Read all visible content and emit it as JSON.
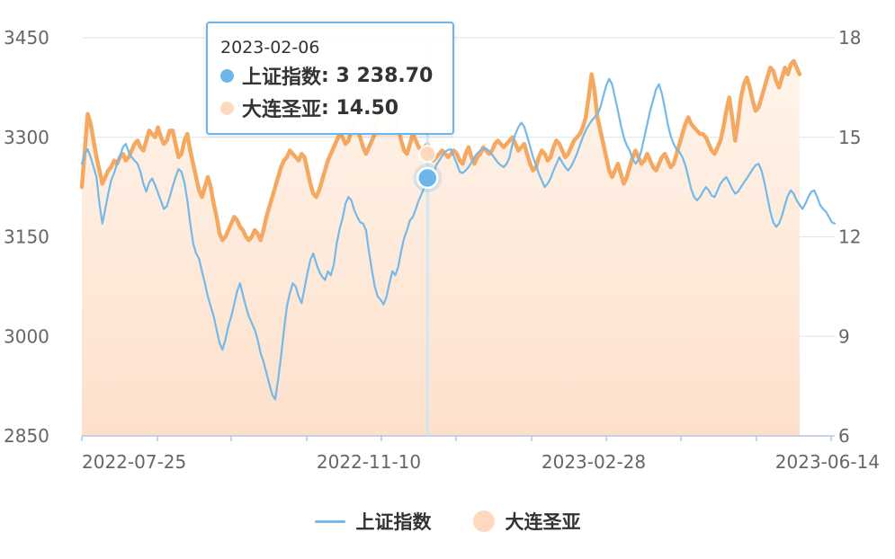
{
  "chart_data": {
    "type": "line",
    "x_ticks": [
      "2022-07-25",
      "2022-11-10",
      "2023-02-28",
      "2023-06-14"
    ],
    "y_left": {
      "ticks": [
        "2850",
        "3000",
        "3150",
        "3300",
        "3450"
      ],
      "min": 2850,
      "max": 3450
    },
    "y_right": {
      "ticks": [
        "6",
        "9",
        "12",
        "15",
        "18"
      ],
      "min": 6,
      "max": 18
    },
    "grid": true,
    "legend_position": "bottom-center",
    "series": [
      {
        "name": "上证指数",
        "axis": "left",
        "color": "#73b9ea",
        "style": "line",
        "values": [
          3260,
          3275,
          3282,
          3270,
          3255,
          3240,
          3200,
          3170,
          3192,
          3215,
          3235,
          3246,
          3260,
          3272,
          3285,
          3290,
          3278,
          3270,
          3265,
          3260,
          3248,
          3230,
          3218,
          3232,
          3238,
          3228,
          3216,
          3204,
          3192,
          3196,
          3210,
          3226,
          3240,
          3252,
          3248,
          3232,
          3205,
          3170,
          3140,
          3125,
          3117,
          3098,
          3080,
          3060,
          3045,
          3030,
          3010,
          2990,
          2980,
          2995,
          3015,
          3030,
          3048,
          3068,
          3080,
          3062,
          3045,
          3030,
          3020,
          3010,
          2995,
          2975,
          2962,
          2945,
          2928,
          2912,
          2905,
          2935,
          2970,
          3010,
          3045,
          3065,
          3080,
          3075,
          3060,
          3050,
          3072,
          3095,
          3115,
          3125,
          3110,
          3098,
          3090,
          3085,
          3098,
          3092,
          3108,
          3140,
          3162,
          3178,
          3200,
          3210,
          3205,
          3190,
          3180,
          3172,
          3170,
          3160,
          3128,
          3100,
          3075,
          3060,
          3055,
          3048,
          3060,
          3080,
          3098,
          3092,
          3105,
          3128,
          3148,
          3160,
          3175,
          3180,
          3192,
          3205,
          3215,
          3225,
          3232,
          3238,
          3245,
          3258,
          3265,
          3272,
          3278,
          3281,
          3282,
          3271,
          3260,
          3248,
          3246,
          3250,
          3255,
          3262,
          3270,
          3276,
          3280,
          3282,
          3283,
          3279,
          3274,
          3268,
          3262,
          3258,
          3255,
          3260,
          3270,
          3290,
          3305,
          3315,
          3322,
          3316,
          3302,
          3286,
          3270,
          3258,
          3245,
          3235,
          3225,
          3230,
          3238,
          3250,
          3260,
          3270,
          3262,
          3255,
          3250,
          3256,
          3265,
          3275,
          3288,
          3300,
          3310,
          3318,
          3325,
          3330,
          3335,
          3345,
          3362,
          3378,
          3388,
          3380,
          3360,
          3340,
          3318,
          3300,
          3288,
          3280,
          3268,
          3260,
          3266,
          3280,
          3300,
          3320,
          3340,
          3356,
          3372,
          3380,
          3366,
          3344,
          3320,
          3302,
          3290,
          3282,
          3278,
          3270,
          3258,
          3240,
          3222,
          3210,
          3205,
          3210,
          3218,
          3225,
          3220,
          3212,
          3210,
          3220,
          3230,
          3236,
          3240,
          3232,
          3222,
          3215,
          3218,
          3225,
          3232,
          3238,
          3245,
          3252,
          3258,
          3260,
          3250,
          3232,
          3210,
          3188,
          3172,
          3165,
          3170,
          3182,
          3198,
          3212,
          3220,
          3215,
          3205,
          3198,
          3192,
          3200,
          3210,
          3218,
          3220,
          3210,
          3198,
          3192,
          3188,
          3180,
          3172,
          3170
        ]
      },
      {
        "name": "大连圣亚",
        "axis": "right",
        "color": "#f4a862",
        "style": "area",
        "values": [
          13.5,
          14.6,
          15.7,
          15.4,
          14.9,
          14.4,
          14.0,
          13.6,
          13.8,
          14.0,
          14.1,
          14.3,
          14.2,
          14.4,
          14.5,
          14.3,
          14.4,
          14.6,
          14.8,
          14.9,
          14.7,
          14.6,
          14.9,
          15.2,
          15.1,
          15.0,
          15.3,
          15.0,
          14.8,
          14.9,
          15.2,
          15.2,
          14.8,
          14.4,
          14.5,
          14.9,
          15.1,
          14.6,
          14.2,
          13.8,
          13.4,
          13.2,
          13.5,
          13.8,
          13.5,
          13.0,
          12.6,
          12.1,
          11.9,
          12.0,
          12.2,
          12.4,
          12.6,
          12.5,
          12.3,
          12.2,
          12.0,
          11.9,
          12.0,
          12.2,
          12.1,
          11.9,
          12.2,
          12.6,
          12.9,
          13.2,
          13.5,
          13.8,
          14.1,
          14.3,
          14.4,
          14.6,
          14.5,
          14.4,
          14.3,
          14.5,
          14.4,
          14.0,
          13.6,
          13.3,
          13.2,
          13.4,
          13.7,
          14.0,
          14.3,
          14.5,
          14.7,
          14.9,
          15.1,
          15.0,
          14.8,
          14.9,
          15.2,
          15.4,
          15.2,
          15.0,
          14.7,
          14.5,
          14.7,
          14.9,
          15.1,
          15.6,
          16.2,
          16.8,
          17.1,
          16.7,
          16.3,
          15.8,
          15.3,
          14.9,
          14.6,
          14.5,
          14.8,
          15.1,
          14.9,
          14.7,
          14.6,
          14.7,
          14.8,
          14.5,
          14.3,
          14.4,
          14.5,
          14.6,
          14.5,
          14.4,
          14.5,
          14.6,
          14.5,
          14.3,
          14.2,
          14.5,
          14.7,
          14.4,
          14.2,
          14.4,
          14.5,
          14.7,
          14.6,
          14.5,
          14.6,
          14.8,
          14.9,
          14.8,
          14.7,
          14.8,
          14.9,
          15.0,
          14.8,
          14.6,
          14.7,
          14.8,
          14.5,
          14.2,
          14.0,
          14.1,
          14.4,
          14.6,
          14.5,
          14.3,
          14.4,
          14.7,
          14.9,
          14.8,
          14.6,
          14.4,
          14.5,
          14.7,
          14.9,
          15.0,
          15.1,
          15.3,
          15.6,
          16.2,
          16.9,
          16.4,
          15.6,
          15.2,
          14.8,
          14.4,
          14.0,
          13.8,
          14.0,
          14.2,
          13.9,
          13.6,
          13.8,
          14.1,
          14.4,
          14.6,
          14.4,
          14.2,
          14.3,
          14.5,
          14.3,
          14.1,
          14.0,
          14.2,
          14.4,
          14.5,
          14.3,
          14.1,
          14.2,
          14.5,
          14.8,
          15.1,
          15.4,
          15.6,
          15.4,
          15.3,
          15.2,
          15.1,
          15.1,
          15.0,
          14.8,
          14.6,
          14.5,
          14.7,
          14.9,
          15.3,
          15.8,
          16.2,
          15.6,
          14.9,
          15.5,
          16.2,
          16.6,
          16.8,
          16.5,
          16.1,
          15.8,
          15.9,
          16.2,
          16.5,
          16.8,
          17.1,
          17.0,
          16.7,
          16.5,
          16.8,
          17.1,
          16.9,
          17.2,
          17.3,
          17.1,
          16.9
        ]
      }
    ],
    "tooltip": {
      "date": "2023-02-06",
      "rows": [
        {
          "name": "上证指数",
          "value": "3 238.70",
          "color": "#6cb6ec"
        },
        {
          "name": "大连圣亚",
          "value": "14.50",
          "color": "#ffd9bf"
        }
      ],
      "index": 118
    }
  }
}
